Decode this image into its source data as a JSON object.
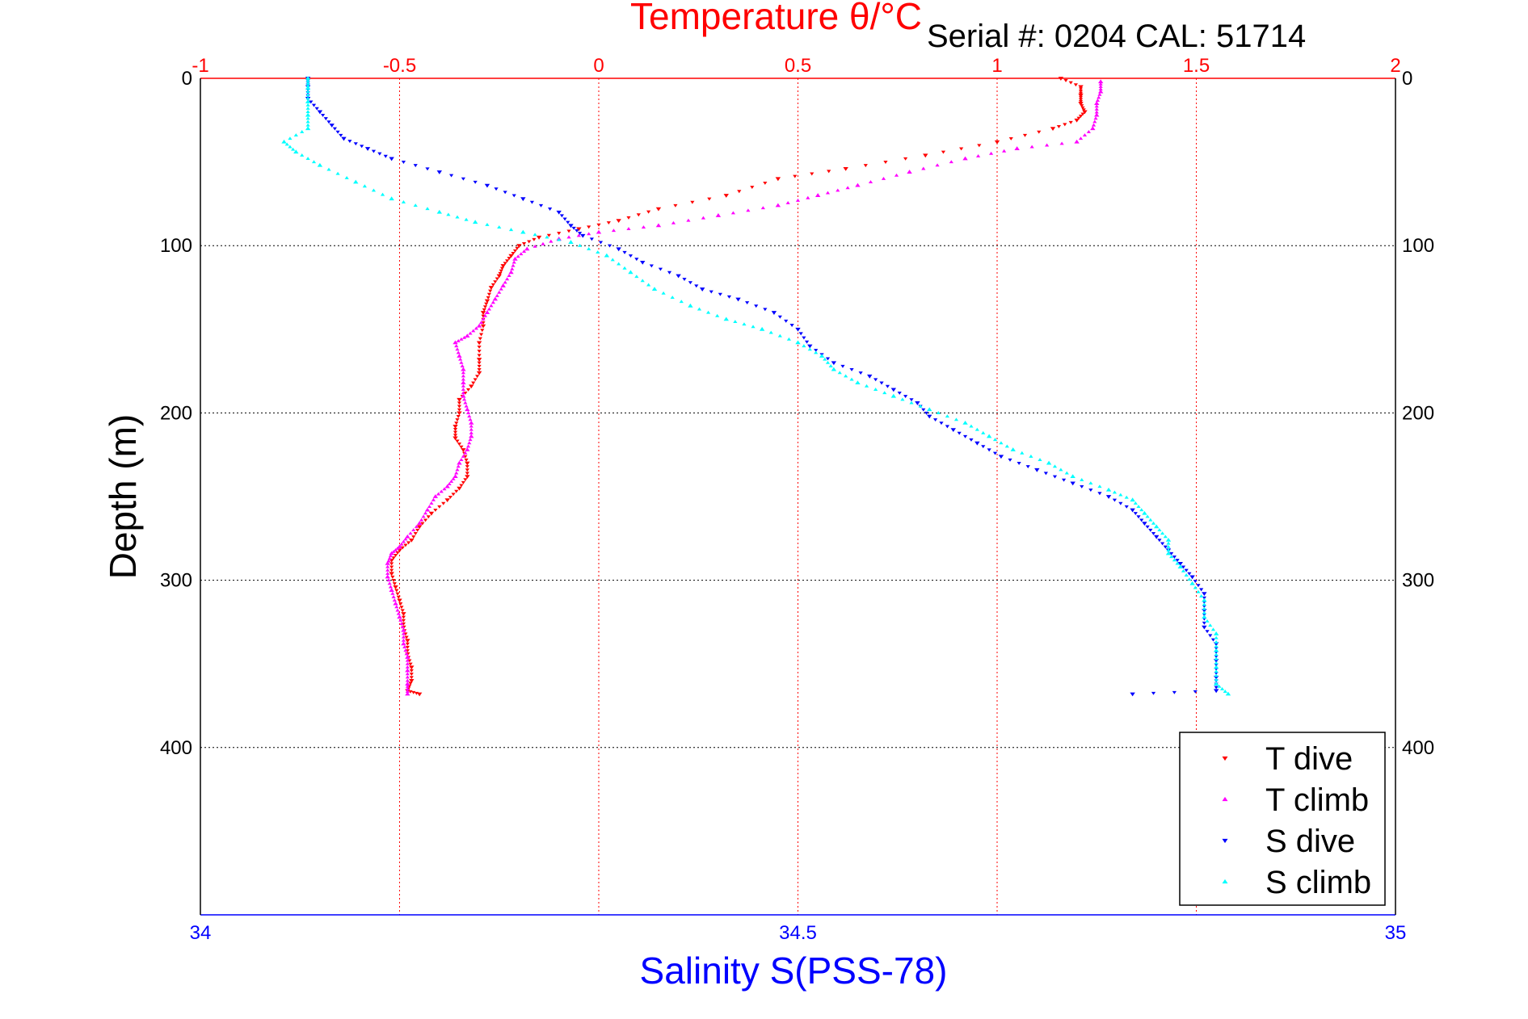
{
  "chart_data": {
    "type": "scatter",
    "title": "Temperature θ/°C",
    "subtitle": "Serial #: 0204  CAL: 51714",
    "xlabel_top": "Temperature θ/°C",
    "xlabel": "Salinity S(PSS-78)",
    "ylabel": "Depth (m)",
    "xlim_top": [
      -1,
      2
    ],
    "xlim_bottom": [
      34,
      35
    ],
    "ylim": [
      0,
      500
    ],
    "y_reversed": true,
    "x_top_ticks": [
      "-1",
      "-0.5",
      "0",
      "0.5",
      "1",
      "1.5",
      "2"
    ],
    "x_bottom_ticks": [
      "34",
      "34.5",
      "35"
    ],
    "y_ticks": [
      "0",
      "100",
      "200",
      "300",
      "400"
    ],
    "grid": true,
    "legend_position": "bottom-right",
    "colors": {
      "t_dive": "#ff0000",
      "t_climb": "#ff00ff",
      "s_dive": "#0000ff",
      "s_climb": "#00ffff",
      "top_axis": "#ff0000",
      "bottom_axis": "#0000ff"
    },
    "series": [
      {
        "name": "T dive",
        "axis": "temperature",
        "marker": "triangle-down",
        "color": "#ff0000",
        "points": [
          [
            1.16,
            0
          ],
          [
            1.21,
            5
          ],
          [
            1.21,
            10
          ],
          [
            1.21,
            15
          ],
          [
            1.22,
            20
          ],
          [
            1.2,
            25
          ],
          [
            1.14,
            30
          ],
          [
            1.0,
            38
          ],
          [
            0.82,
            46
          ],
          [
            0.62,
            54
          ],
          [
            0.45,
            60
          ],
          [
            0.32,
            70
          ],
          [
            0.15,
            78
          ],
          [
            0.05,
            85
          ],
          [
            -0.05,
            90
          ],
          [
            -0.15,
            95
          ],
          [
            -0.2,
            100
          ],
          [
            -0.22,
            106
          ],
          [
            -0.24,
            112
          ],
          [
            -0.25,
            118
          ],
          [
            -0.27,
            125
          ],
          [
            -0.28,
            133
          ],
          [
            -0.29,
            140
          ],
          [
            -0.29,
            148
          ],
          [
            -0.3,
            158
          ],
          [
            -0.3,
            168
          ],
          [
            -0.3,
            176
          ],
          [
            -0.32,
            184
          ],
          [
            -0.35,
            192
          ],
          [
            -0.35,
            200
          ],
          [
            -0.36,
            208
          ],
          [
            -0.36,
            215
          ],
          [
            -0.34,
            222
          ],
          [
            -0.33,
            230
          ],
          [
            -0.33,
            238
          ],
          [
            -0.35,
            245
          ],
          [
            -0.38,
            252
          ],
          [
            -0.42,
            260
          ],
          [
            -0.45,
            268
          ],
          [
            -0.47,
            276
          ],
          [
            -0.5,
            282
          ],
          [
            -0.52,
            288
          ],
          [
            -0.52,
            296
          ],
          [
            -0.51,
            304
          ],
          [
            -0.5,
            312
          ],
          [
            -0.49,
            320
          ],
          [
            -0.49,
            328
          ],
          [
            -0.48,
            336
          ],
          [
            -0.48,
            344
          ],
          [
            -0.47,
            352
          ],
          [
            -0.47,
            360
          ],
          [
            -0.48,
            366
          ],
          [
            -0.45,
            368
          ]
        ]
      },
      {
        "name": "T climb",
        "axis": "temperature",
        "marker": "triangle-up",
        "color": "#ff00ff",
        "points": [
          [
            -0.48,
            368
          ],
          [
            -0.48,
            362
          ],
          [
            -0.48,
            354
          ],
          [
            -0.48,
            346
          ],
          [
            -0.49,
            338
          ],
          [
            -0.49,
            330
          ],
          [
            -0.5,
            322
          ],
          [
            -0.51,
            314
          ],
          [
            -0.52,
            306
          ],
          [
            -0.53,
            298
          ],
          [
            -0.53,
            290
          ],
          [
            -0.52,
            284
          ],
          [
            -0.5,
            280
          ],
          [
            -0.48,
            274
          ],
          [
            -0.45,
            266
          ],
          [
            -0.43,
            258
          ],
          [
            -0.41,
            250
          ],
          [
            -0.38,
            244
          ],
          [
            -0.36,
            238
          ],
          [
            -0.35,
            230
          ],
          [
            -0.33,
            222
          ],
          [
            -0.32,
            214
          ],
          [
            -0.32,
            206
          ],
          [
            -0.33,
            198
          ],
          [
            -0.34,
            190
          ],
          [
            -0.34,
            182
          ],
          [
            -0.34,
            174
          ],
          [
            -0.35,
            166
          ],
          [
            -0.36,
            158
          ],
          [
            -0.33,
            154
          ],
          [
            -0.3,
            148
          ],
          [
            -0.28,
            140
          ],
          [
            -0.26,
            132
          ],
          [
            -0.24,
            124
          ],
          [
            -0.22,
            116
          ],
          [
            -0.21,
            108
          ],
          [
            -0.18,
            102
          ],
          [
            -0.1,
            96
          ],
          [
            0.0,
            92
          ],
          [
            0.15,
            88
          ],
          [
            0.3,
            82
          ],
          [
            0.45,
            76
          ],
          [
            0.55,
            70
          ],
          [
            0.65,
            64
          ],
          [
            0.78,
            56
          ],
          [
            0.92,
            48
          ],
          [
            1.05,
            42
          ],
          [
            1.2,
            38
          ],
          [
            1.24,
            30
          ],
          [
            1.25,
            22
          ],
          [
            1.25,
            15
          ],
          [
            1.26,
            8
          ],
          [
            1.26,
            2
          ]
        ]
      },
      {
        "name": "S dive",
        "axis": "salinity",
        "marker": "triangle-down",
        "color": "#0000ff",
        "points": [
          [
            34.09,
            0
          ],
          [
            34.09,
            5
          ],
          [
            34.09,
            12
          ],
          [
            34.1,
            20
          ],
          [
            34.11,
            28
          ],
          [
            34.12,
            36
          ],
          [
            34.14,
            42
          ],
          [
            34.16,
            48
          ],
          [
            34.2,
            56
          ],
          [
            34.24,
            64
          ],
          [
            34.27,
            72
          ],
          [
            34.3,
            80
          ],
          [
            34.31,
            88
          ],
          [
            34.32,
            94
          ],
          [
            34.35,
            102
          ],
          [
            34.37,
            110
          ],
          [
            34.4,
            118
          ],
          [
            34.42,
            126
          ],
          [
            34.45,
            132
          ],
          [
            34.48,
            140
          ],
          [
            34.5,
            150
          ],
          [
            34.51,
            160
          ],
          [
            34.53,
            170
          ],
          [
            34.56,
            178
          ],
          [
            34.58,
            186
          ],
          [
            34.6,
            194
          ],
          [
            34.61,
            202
          ],
          [
            34.63,
            210
          ],
          [
            34.65,
            218
          ],
          [
            34.67,
            226
          ],
          [
            34.7,
            234
          ],
          [
            34.73,
            242
          ],
          [
            34.76,
            250
          ],
          [
            34.78,
            258
          ],
          [
            34.79,
            266
          ],
          [
            34.8,
            274
          ],
          [
            34.81,
            282
          ],
          [
            34.82,
            290
          ],
          [
            34.83,
            298
          ],
          [
            34.84,
            308
          ],
          [
            34.84,
            318
          ],
          [
            34.84,
            328
          ],
          [
            34.85,
            338
          ],
          [
            34.85,
            348
          ],
          [
            34.85,
            358
          ],
          [
            34.85,
            366
          ],
          [
            34.78,
            368
          ]
        ]
      },
      {
        "name": "S climb",
        "axis": "salinity",
        "marker": "triangle-up",
        "color": "#00ffff",
        "points": [
          [
            34.86,
            368
          ],
          [
            34.85,
            362
          ],
          [
            34.85,
            352
          ],
          [
            34.85,
            342
          ],
          [
            34.85,
            332
          ],
          [
            34.84,
            322
          ],
          [
            34.84,
            312
          ],
          [
            34.83,
            302
          ],
          [
            34.82,
            292
          ],
          [
            34.81,
            284
          ],
          [
            34.81,
            276
          ],
          [
            34.8,
            268
          ],
          [
            34.79,
            260
          ],
          [
            34.78,
            252
          ],
          [
            34.76,
            246
          ],
          [
            34.73,
            238
          ],
          [
            34.71,
            230
          ],
          [
            34.68,
            222
          ],
          [
            34.66,
            214
          ],
          [
            34.64,
            206
          ],
          [
            34.61,
            198
          ],
          [
            34.58,
            190
          ],
          [
            34.55,
            182
          ],
          [
            34.53,
            174
          ],
          [
            34.52,
            166
          ],
          [
            34.5,
            158
          ],
          [
            34.47,
            150
          ],
          [
            34.44,
            144
          ],
          [
            34.41,
            136
          ],
          [
            34.38,
            126
          ],
          [
            34.36,
            116
          ],
          [
            34.34,
            106
          ],
          [
            34.31,
            98
          ],
          [
            34.27,
            92
          ],
          [
            34.23,
            86
          ],
          [
            34.2,
            80
          ],
          [
            34.16,
            72
          ],
          [
            34.13,
            62
          ],
          [
            34.1,
            52
          ],
          [
            34.08,
            44
          ],
          [
            34.07,
            38
          ],
          [
            34.09,
            30
          ],
          [
            34.09,
            22
          ],
          [
            34.09,
            14
          ],
          [
            34.09,
            6
          ],
          [
            34.09,
            0
          ]
        ]
      }
    ]
  }
}
